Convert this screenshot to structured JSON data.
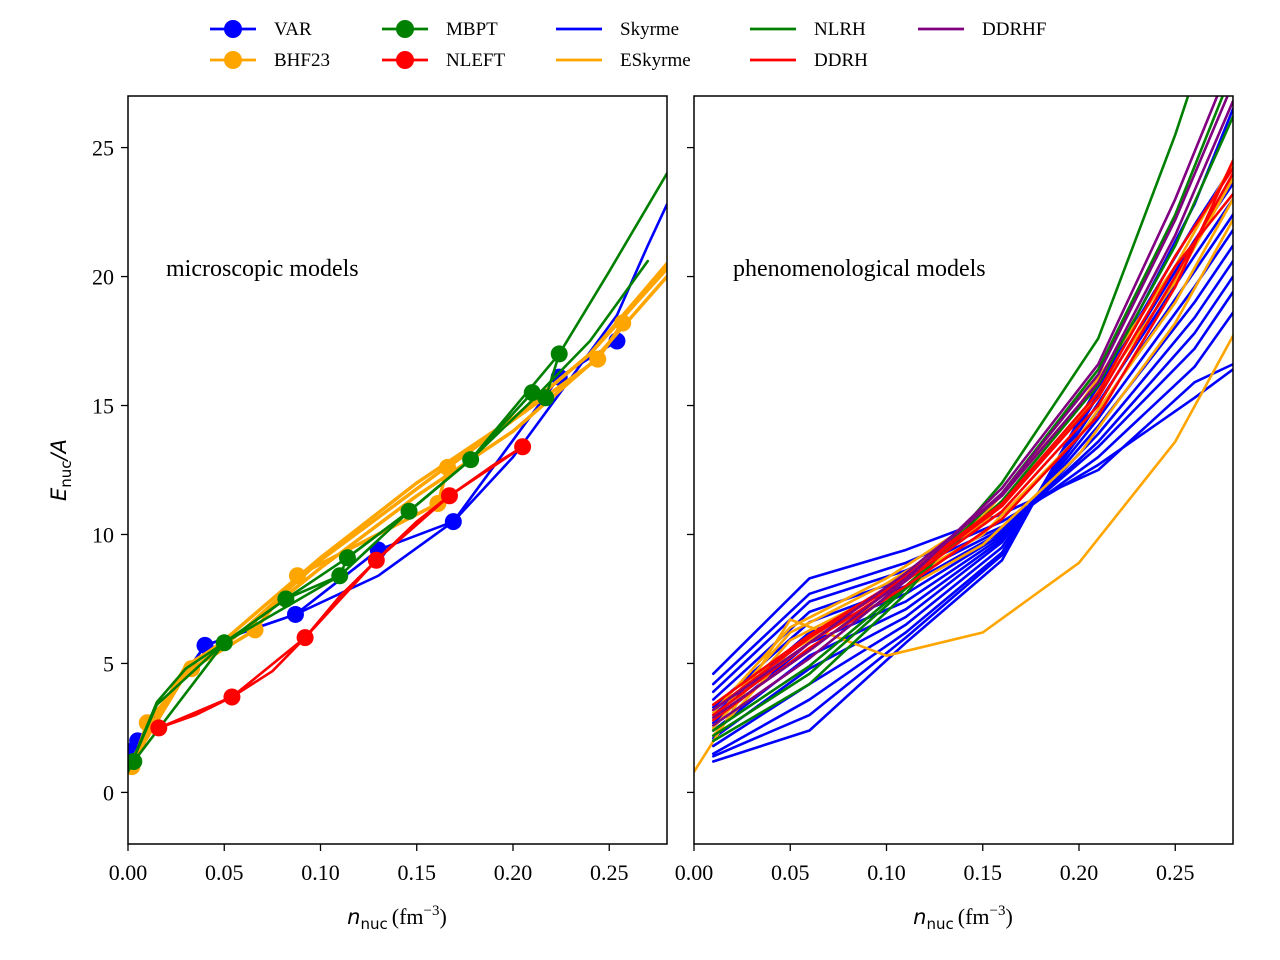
{
  "legend": [
    {
      "name": "VAR",
      "color": "#0000ff",
      "marker": true
    },
    {
      "name": "BHF23",
      "color": "#ffa500",
      "marker": true
    },
    {
      "name": "MBPT",
      "color": "#008000",
      "marker": true
    },
    {
      "name": "NLEFT",
      "color": "#ff0000",
      "marker": true
    },
    {
      "name": "Skyrme",
      "color": "#0000ff",
      "marker": false
    },
    {
      "name": "ESkyrme",
      "color": "#ffa500",
      "marker": false
    },
    {
      "name": "NLRH",
      "color": "#008000",
      "marker": false
    },
    {
      "name": "DDRH",
      "color": "#ff0000",
      "marker": false
    },
    {
      "name": "DDRHF",
      "color": "#800080",
      "marker": false
    }
  ],
  "axes": {
    "ylabel_main": "E",
    "ylabel_sub": "nuc",
    "ylabel_tail": "/A",
    "xlabel_main": "n",
    "xlabel_sub": "nuc",
    "xlabel_unit": "(fm",
    "xlabel_exp": "−3",
    "xlabel_close": ")"
  },
  "chart_data": [
    {
      "type": "line",
      "panel": "left",
      "annotation": "microscopic models",
      "xlim": [
        0.0,
        0.28
      ],
      "ylim": [
        -2,
        27
      ],
      "xticks": [
        "0.00",
        "0.05",
        "0.10",
        "0.15",
        "0.20",
        "0.25"
      ],
      "yticks": [
        "0",
        "5",
        "10",
        "15",
        "20",
        "25"
      ],
      "series": [
        {
          "name": "VAR",
          "color": "#0000ff",
          "marker": true,
          "x": [
            0.002,
            0.005,
            0.04,
            0.087,
            0.13,
            0.169,
            0.224,
            0.254
          ],
          "y": [
            1.6,
            2.0,
            5.7,
            6.9,
            9.4,
            10.5,
            16.1,
            17.5
          ]
        },
        {
          "name": "VAR",
          "color": "#0000ff",
          "marker": false,
          "x": [
            0.0,
            0.02,
            0.04,
            0.087,
            0.13,
            0.169,
            0.2,
            0.254,
            0.27,
            0.28
          ],
          "y": [
            1.0,
            3.5,
            5.7,
            6.9,
            8.4,
            10.5,
            13.0,
            18.5,
            21.2,
            22.8
          ]
        },
        {
          "name": "BHF23",
          "color": "#ffa500",
          "marker": true,
          "x": [
            0.002,
            0.01,
            0.033,
            0.066,
            0.088,
            0.161,
            0.166,
            0.244,
            0.257
          ],
          "y": [
            1.0,
            2.7,
            4.8,
            6.3,
            8.4,
            11.2,
            12.6,
            16.8,
            18.2
          ]
        },
        {
          "name": "BHF23",
          "color": "#ffa500",
          "marker": false,
          "x": [
            0.0,
            0.03,
            0.05,
            0.1,
            0.15,
            0.2,
            0.24,
            0.28
          ],
          "y": [
            1.0,
            4.8,
            5.9,
            9.1,
            12.0,
            14.5,
            17.0,
            20.5
          ]
        },
        {
          "name": "BHF23",
          "color": "#ffa500",
          "marker": false,
          "x": [
            0.0,
            0.03,
            0.05,
            0.1,
            0.15,
            0.2,
            0.24,
            0.28
          ],
          "y": [
            0.9,
            4.6,
            5.7,
            8.7,
            11.5,
            14.0,
            16.6,
            20.0
          ]
        },
        {
          "name": "BHF23",
          "color": "#ffa500",
          "marker": false,
          "x": [
            0.0,
            0.03,
            0.06,
            0.1,
            0.165,
            0.2,
            0.24,
            0.28
          ],
          "y": [
            1.0,
            4.9,
            6.3,
            9.0,
            12.6,
            14.5,
            17.0,
            20.3
          ]
        },
        {
          "name": "MBPT",
          "color": "#008000",
          "marker": true,
          "x": [
            0.003,
            0.05,
            0.082,
            0.11,
            0.114,
            0.146,
            0.178,
            0.21,
            0.217,
            0.224
          ],
          "y": [
            1.2,
            5.8,
            7.5,
            8.4,
            9.1,
            10.9,
            12.9,
            15.5,
            15.3,
            17.0
          ]
        },
        {
          "name": "MBPT",
          "color": "#008000",
          "marker": false,
          "x": [
            0.0,
            0.015,
            0.03,
            0.05,
            0.082,
            0.114,
            0.146,
            0.178,
            0.21,
            0.24,
            0.27
          ],
          "y": [
            0.8,
            3.5,
            4.8,
            5.8,
            7.5,
            9.1,
            10.9,
            12.9,
            15.2,
            17.5,
            20.6
          ]
        },
        {
          "name": "MBPT",
          "color": "#008000",
          "marker": false,
          "x": [
            0.0,
            0.015,
            0.05,
            0.11,
            0.146,
            0.178,
            0.224,
            0.25,
            0.28
          ],
          "y": [
            0.8,
            3.4,
            5.8,
            8.4,
            10.9,
            12.9,
            17.0,
            20.2,
            24.0
          ]
        },
        {
          "name": "NLEFT",
          "color": "#ff0000",
          "marker": true,
          "x": [
            0.016,
            0.054,
            0.092,
            0.129,
            0.167,
            0.205
          ],
          "y": [
            2.5,
            3.7,
            6.0,
            9.0,
            11.5,
            13.4
          ]
        },
        {
          "name": "NLEFT",
          "color": "#ff0000",
          "marker": false,
          "x": [
            0.016,
            0.035,
            0.054,
            0.075,
            0.092,
            0.11,
            0.129,
            0.15,
            0.167,
            0.19,
            0.205
          ],
          "y": [
            2.5,
            3.0,
            3.7,
            4.7,
            6.0,
            7.6,
            9.0,
            10.5,
            11.5,
            12.7,
            13.4
          ]
        }
      ]
    },
    {
      "type": "line",
      "panel": "right",
      "annotation": "phenomenological models",
      "xlim": [
        0.0,
        0.28
      ],
      "ylim": [
        -2,
        27
      ],
      "xticks": [
        "0.00",
        "0.05",
        "0.10",
        "0.15",
        "0.20",
        "0.25"
      ],
      "yticks": [
        "0",
        "5",
        "10",
        "15",
        "20",
        "25"
      ],
      "series": [
        {
          "name": "Skyrme",
          "color": "#0000ff",
          "x": [
            0.01,
            0.06,
            0.11,
            0.16,
            0.21,
            0.26,
            0.28
          ],
          "y": [
            4.6,
            8.3,
            9.4,
            10.8,
            12.5,
            15.9,
            16.6
          ]
        },
        {
          "name": "Skyrme",
          "color": "#0000ff",
          "x": [
            0.01,
            0.06,
            0.11,
            0.16,
            0.21,
            0.26,
            0.28
          ],
          "y": [
            4.2,
            7.7,
            8.9,
            10.5,
            12.7,
            15.3,
            16.4
          ]
        },
        {
          "name": "Skyrme",
          "color": "#0000ff",
          "x": [
            0.01,
            0.06,
            0.11,
            0.16,
            0.21,
            0.26,
            0.28
          ],
          "y": [
            3.9,
            7.4,
            8.6,
            10.3,
            13.0,
            16.5,
            18.6
          ]
        },
        {
          "name": "Skyrme",
          "color": "#0000ff",
          "x": [
            0.01,
            0.06,
            0.11,
            0.16,
            0.21,
            0.26,
            0.28
          ],
          "y": [
            3.6,
            7.0,
            8.3,
            10.2,
            13.4,
            17.2,
            19.4
          ]
        },
        {
          "name": "Skyrme",
          "color": "#0000ff",
          "x": [
            0.01,
            0.06,
            0.11,
            0.16,
            0.21,
            0.26,
            0.28
          ],
          "y": [
            3.3,
            6.6,
            8.0,
            10.1,
            13.6,
            17.8,
            20.0
          ]
        },
        {
          "name": "Skyrme",
          "color": "#0000ff",
          "x": [
            0.01,
            0.06,
            0.11,
            0.16,
            0.21,
            0.26,
            0.28
          ],
          "y": [
            3.0,
            6.2,
            7.7,
            10.0,
            13.9,
            18.4,
            20.6
          ]
        },
        {
          "name": "Skyrme",
          "color": "#0000ff",
          "x": [
            0.01,
            0.06,
            0.11,
            0.16,
            0.21,
            0.26,
            0.28
          ],
          "y": [
            2.7,
            5.8,
            7.4,
            9.9,
            14.2,
            19.0,
            21.2
          ]
        },
        {
          "name": "Skyrme",
          "color": "#0000ff",
          "x": [
            0.01,
            0.06,
            0.11,
            0.16,
            0.21,
            0.26,
            0.28
          ],
          "y": [
            2.4,
            5.3,
            7.1,
            9.8,
            14.5,
            19.6,
            21.8
          ]
        },
        {
          "name": "Skyrme",
          "color": "#0000ff",
          "x": [
            0.01,
            0.06,
            0.11,
            0.16,
            0.21,
            0.26,
            0.28
          ],
          "y": [
            2.1,
            4.8,
            6.8,
            9.7,
            14.8,
            20.2,
            22.4
          ]
        },
        {
          "name": "Skyrme",
          "color": "#0000ff",
          "x": [
            0.01,
            0.06,
            0.11,
            0.16,
            0.21,
            0.26,
            0.28
          ],
          "y": [
            1.8,
            4.2,
            6.5,
            9.5,
            15.1,
            20.8,
            23.0
          ]
        },
        {
          "name": "Skyrme",
          "color": "#0000ff",
          "x": [
            0.01,
            0.06,
            0.11,
            0.16,
            0.21,
            0.26,
            0.28
          ],
          "y": [
            1.5,
            3.6,
            6.2,
            9.3,
            15.4,
            21.4,
            23.6
          ]
        },
        {
          "name": "Skyrme",
          "color": "#0000ff",
          "x": [
            0.01,
            0.06,
            0.11,
            0.16,
            0.21,
            0.26,
            0.28
          ],
          "y": [
            1.2,
            2.4,
            5.8,
            9.0,
            15.8,
            22.0,
            24.3
          ]
        },
        {
          "name": "Skyrme",
          "color": "#0000ff",
          "x": [
            0.01,
            0.06,
            0.11,
            0.16,
            0.21,
            0.26,
            0.28
          ],
          "y": [
            1.4,
            3.0,
            6.0,
            9.2,
            15.6,
            22.8,
            26.5
          ]
        },
        {
          "name": "ESkyrme",
          "color": "#ffa500",
          "x": [
            0.0,
            0.05,
            0.1,
            0.15,
            0.2,
            0.25,
            0.28
          ],
          "y": [
            0.8,
            6.7,
            5.3,
            6.2,
            8.9,
            13.6,
            17.7
          ]
        },
        {
          "name": "ESkyrme",
          "color": "#ffa500",
          "x": [
            0.01,
            0.05,
            0.1,
            0.15,
            0.2,
            0.25,
            0.28
          ],
          "y": [
            2.2,
            5.5,
            7.5,
            9.6,
            13.1,
            18.2,
            22.2
          ]
        },
        {
          "name": "ESkyrme",
          "color": "#ffa500",
          "x": [
            0.01,
            0.05,
            0.1,
            0.15,
            0.2,
            0.25,
            0.28
          ],
          "y": [
            2.5,
            5.9,
            7.8,
            10.0,
            13.8,
            19.0,
            23.0
          ]
        },
        {
          "name": "ESkyrme",
          "color": "#ffa500",
          "x": [
            0.01,
            0.05,
            0.1,
            0.15,
            0.2,
            0.25,
            0.28
          ],
          "y": [
            2.8,
            6.2,
            8.1,
            10.4,
            14.5,
            19.8,
            23.8
          ]
        },
        {
          "name": "ESkyrme",
          "color": "#ffa500",
          "x": [
            0.01,
            0.05,
            0.1,
            0.15,
            0.2,
            0.25,
            0.28
          ],
          "y": [
            3.1,
            6.4,
            8.3,
            10.7,
            15.0,
            20.4,
            24.4
          ]
        },
        {
          "name": "NLRH",
          "color": "#008000",
          "x": [
            0.01,
            0.06,
            0.11,
            0.16,
            0.21,
            0.25,
            0.27
          ],
          "y": [
            2.0,
            4.2,
            7.7,
            12.0,
            17.6,
            25.5,
            30.0
          ]
        },
        {
          "name": "NLRH",
          "color": "#008000",
          "x": [
            0.01,
            0.06,
            0.11,
            0.16,
            0.21,
            0.25,
            0.28
          ],
          "y": [
            2.2,
            4.6,
            7.9,
            11.6,
            16.4,
            22.4,
            28.0
          ]
        },
        {
          "name": "NLRH",
          "color": "#008000",
          "x": [
            0.01,
            0.06,
            0.11,
            0.16,
            0.21,
            0.25,
            0.28
          ],
          "y": [
            2.4,
            4.9,
            8.0,
            11.3,
            15.8,
            21.2,
            26.2
          ]
        },
        {
          "name": "DDRH",
          "color": "#ff0000",
          "x": [
            0.01,
            0.06,
            0.11,
            0.16,
            0.21,
            0.25,
            0.28
          ],
          "y": [
            2.8,
            5.6,
            8.0,
            10.6,
            14.6,
            19.6,
            24.5
          ]
        },
        {
          "name": "DDRH",
          "color": "#ff0000",
          "x": [
            0.01,
            0.06,
            0.11,
            0.16,
            0.21,
            0.25,
            0.28
          ],
          "y": [
            3.0,
            5.8,
            8.2,
            10.9,
            15.0,
            20.0,
            24.0
          ]
        },
        {
          "name": "DDRH",
          "color": "#ff0000",
          "x": [
            0.01,
            0.06,
            0.11,
            0.16,
            0.21,
            0.25,
            0.28
          ],
          "y": [
            3.2,
            6.0,
            8.3,
            11.1,
            15.3,
            20.4,
            23.2
          ]
        },
        {
          "name": "DDRH",
          "color": "#ff0000",
          "x": [
            0.01,
            0.06,
            0.11,
            0.16,
            0.21,
            0.25,
            0.28
          ],
          "y": [
            3.4,
            6.1,
            8.4,
            11.2,
            15.5,
            20.8,
            24.2
          ]
        },
        {
          "name": "DDRHF",
          "color": "#800080",
          "x": [
            0.01,
            0.06,
            0.11,
            0.16,
            0.21,
            0.25,
            0.28
          ],
          "y": [
            2.6,
            5.2,
            8.2,
            11.8,
            16.6,
            23.0,
            28.5
          ]
        },
        {
          "name": "DDRHF",
          "color": "#800080",
          "x": [
            0.01,
            0.06,
            0.11,
            0.16,
            0.21,
            0.25,
            0.28
          ],
          "y": [
            2.9,
            5.5,
            8.3,
            11.6,
            16.2,
            22.2,
            27.5
          ]
        },
        {
          "name": "DDRHF",
          "color": "#800080",
          "x": [
            0.01,
            0.06,
            0.11,
            0.16,
            0.21,
            0.25,
            0.28
          ],
          "y": [
            3.2,
            5.8,
            8.5,
            11.5,
            15.9,
            21.6,
            26.8
          ]
        }
      ]
    }
  ]
}
